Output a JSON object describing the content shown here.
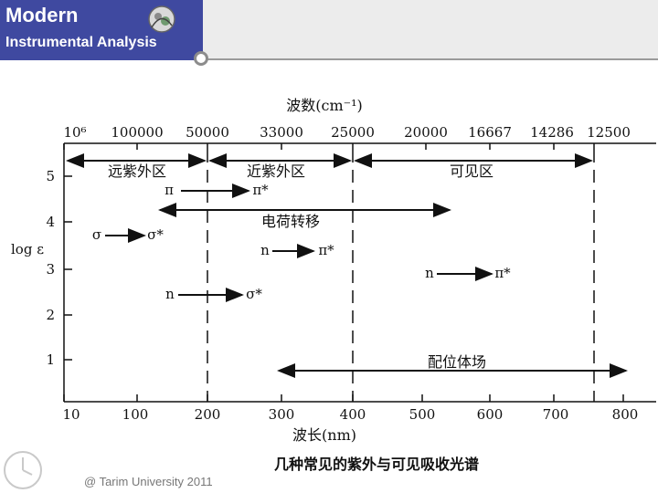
{
  "header": {
    "title": "Modern",
    "subtitle": "Instrumental Analysis"
  },
  "footer": {
    "text": "@ Tarim University 2011"
  },
  "diagram": {
    "wavenumber_axis": {
      "label": "波数(cm⁻¹)",
      "ticks": [
        "10⁶",
        "100000",
        "50000",
        "33000",
        "25000",
        "20000",
        "16667",
        "14286",
        "12500"
      ]
    },
    "wavelength_axis": {
      "label": "波长(nm)",
      "ticks": [
        "10",
        "100",
        "200",
        "300",
        "400",
        "500",
        "600",
        "700",
        "800"
      ]
    },
    "y_axis": {
      "label": "log ε",
      "ticks": [
        "5",
        "4",
        "3",
        "2",
        "1"
      ]
    },
    "regions": {
      "far_uv": "远紫外区",
      "near_uv": "近紫外区",
      "visible": "可见区"
    },
    "transitions": {
      "pi_pi_star": {
        "from": "π",
        "to": "π*"
      },
      "charge_transfer": "电荷转移",
      "sigma_sigma_star": {
        "from": "σ",
        "to": "σ*"
      },
      "n_pi_star_uv": {
        "from": "n",
        "to": "π*"
      },
      "n_pi_star_vis": {
        "from": "n",
        "to": "π*"
      },
      "n_sigma_star": {
        "from": "n",
        "to": "σ*"
      },
      "ligand_field": "配位体场"
    },
    "caption": "几种常见的紫外与可见吸收光谱"
  }
}
